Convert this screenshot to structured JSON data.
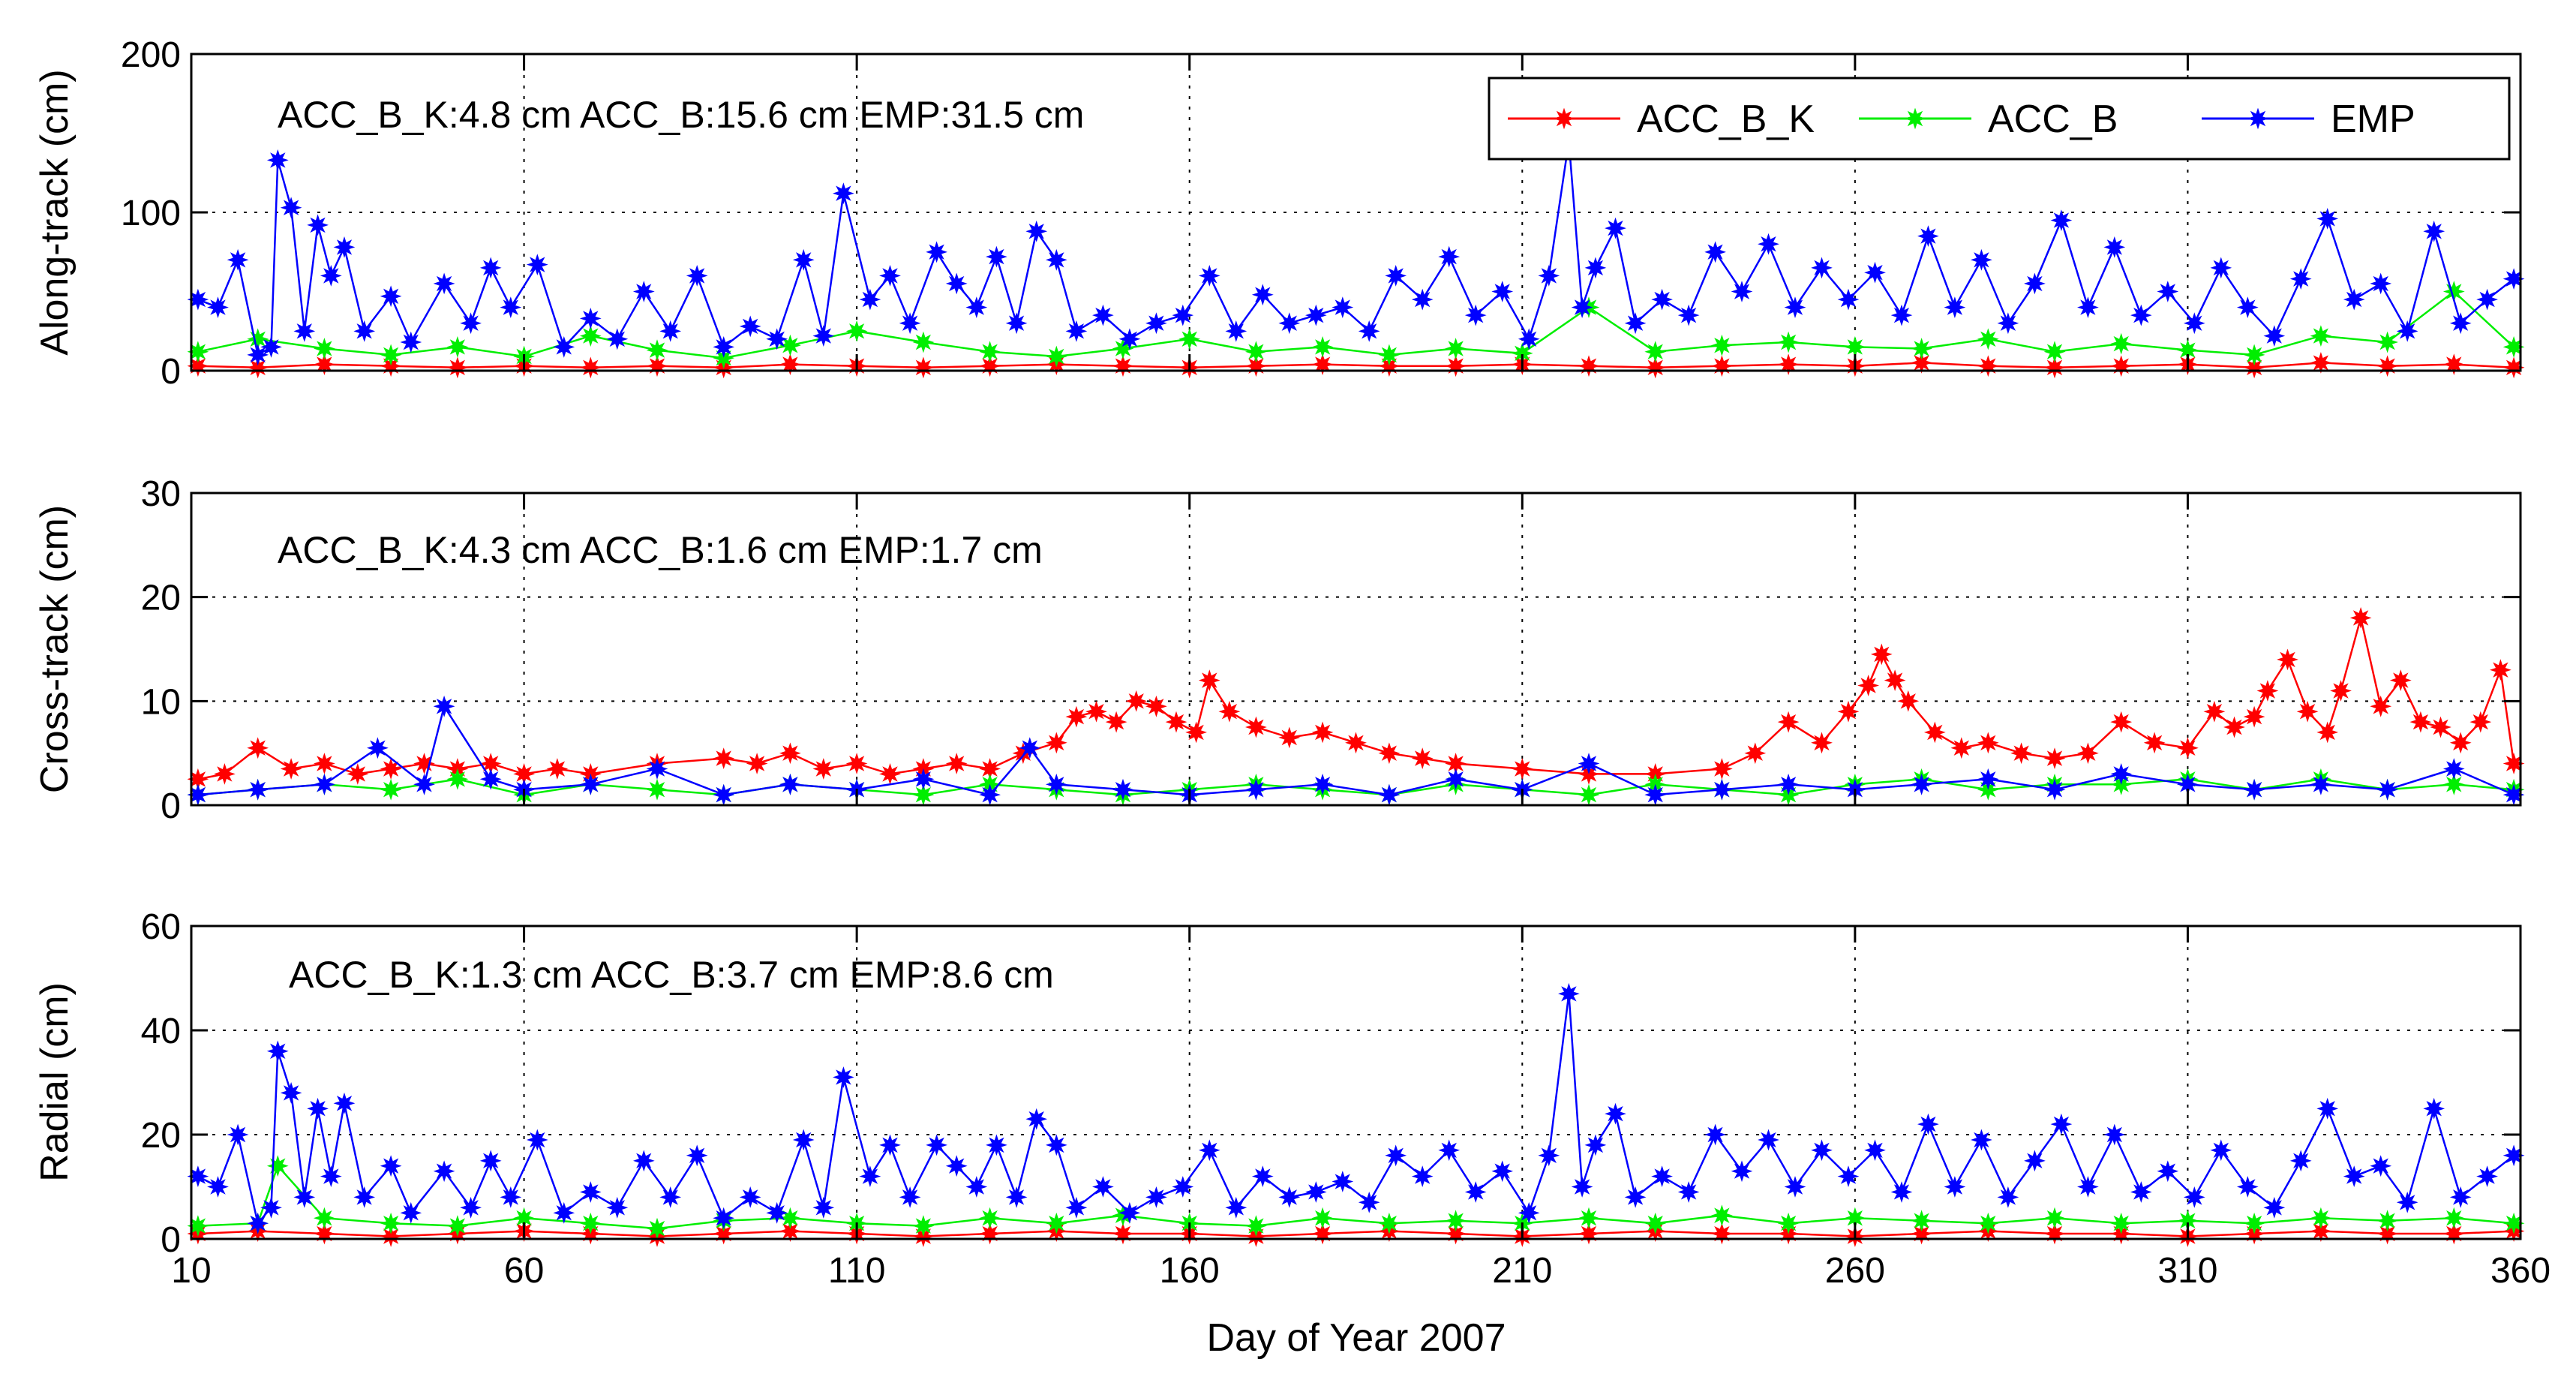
{
  "chart_data": [
    {
      "type": "line",
      "ylabel": "Along-track (cm)",
      "xlabel": "",
      "xlim": [
        10,
        360
      ],
      "ylim": [
        0,
        200
      ],
      "yticks": [
        0,
        100,
        200
      ],
      "xticks": [
        10,
        60,
        110,
        160,
        210,
        260,
        310,
        360
      ],
      "grid": true,
      "annotation": "ACC_B_K:4.8 cm ACC_B:15.6 cm EMP:31.5 cm",
      "legend": {
        "placement": "top-right",
        "entries": [
          "ACC_B_K",
          "ACC_B",
          "EMP"
        ]
      },
      "series": [
        {
          "name": "ACC_B_K",
          "color": "#ff0000",
          "x": [
            11,
            20,
            30,
            40,
            50,
            60,
            70,
            80,
            90,
            100,
            110,
            120,
            130,
            140,
            150,
            160,
            170,
            180,
            190,
            200,
            210,
            220,
            230,
            240,
            250,
            260,
            270,
            280,
            290,
            300,
            310,
            320,
            330,
            340,
            350,
            359
          ],
          "y": [
            3,
            2,
            4,
            3,
            2,
            3,
            2,
            3,
            2,
            4,
            3,
            2,
            3,
            4,
            3,
            2,
            3,
            4,
            3,
            3,
            4,
            3,
            2,
            3,
            4,
            3,
            5,
            3,
            2,
            3,
            4,
            2,
            5,
            3,
            4,
            2
          ]
        },
        {
          "name": "ACC_B",
          "color": "#00ee00",
          "x": [
            11,
            20,
            30,
            40,
            50,
            60,
            70,
            80,
            90,
            100,
            110,
            120,
            130,
            140,
            150,
            160,
            170,
            180,
            190,
            200,
            210,
            220,
            230,
            240,
            250,
            260,
            270,
            280,
            290,
            300,
            310,
            320,
            330,
            340,
            350,
            359
          ],
          "y": [
            12,
            20,
            14,
            10,
            15,
            9,
            22,
            13,
            8,
            16,
            25,
            18,
            12,
            9,
            14,
            20,
            12,
            15,
            10,
            14,
            11,
            40,
            12,
            16,
            18,
            15,
            14,
            20,
            12,
            17,
            13,
            10,
            22,
            18,
            50,
            15
          ]
        },
        {
          "name": "EMP",
          "color": "#0000ff",
          "x": [
            11,
            14,
            17,
            20,
            22,
            23,
            25,
            27,
            29,
            31,
            33,
            36,
            40,
            43,
            48,
            52,
            55,
            58,
            62,
            66,
            70,
            74,
            78,
            82,
            86,
            90,
            94,
            98,
            102,
            105,
            108,
            112,
            115,
            118,
            122,
            125,
            128,
            131,
            134,
            137,
            140,
            143,
            147,
            151,
            155,
            159,
            163,
            167,
            171,
            175,
            179,
            183,
            187,
            191,
            195,
            199,
            203,
            207,
            211,
            214,
            217,
            219,
            221,
            224,
            227,
            231,
            235,
            239,
            243,
            247,
            251,
            255,
            259,
            263,
            267,
            271,
            275,
            279,
            283,
            287,
            291,
            295,
            299,
            303,
            307,
            311,
            315,
            319,
            323,
            327,
            331,
            335,
            339,
            343,
            347,
            351,
            355,
            359
          ],
          "y": [
            45,
            40,
            70,
            10,
            15,
            133,
            103,
            25,
            92,
            60,
            78,
            25,
            47,
            18,
            55,
            30,
            65,
            40,
            67,
            15,
            33,
            20,
            50,
            25,
            60,
            15,
            28,
            20,
            70,
            22,
            112,
            45,
            60,
            30,
            75,
            55,
            40,
            72,
            30,
            88,
            70,
            25,
            35,
            20,
            30,
            35,
            60,
            25,
            48,
            30,
            35,
            40,
            25,
            60,
            45,
            72,
            35,
            50,
            20,
            60,
            145,
            40,
            65,
            90,
            30,
            45,
            35,
            75,
            50,
            80,
            40,
            65,
            45,
            62,
            35,
            85,
            40,
            70,
            30,
            55,
            95,
            40,
            78,
            35,
            50,
            30,
            65,
            40,
            22,
            58,
            96,
            45,
            55,
            25,
            88,
            30,
            45,
            58
          ]
        }
      ]
    },
    {
      "type": "line",
      "ylabel": "Cross-track (cm)",
      "xlabel": "",
      "xlim": [
        10,
        360
      ],
      "ylim": [
        0,
        30
      ],
      "yticks": [
        0,
        10,
        20,
        30
      ],
      "xticks": [
        10,
        60,
        110,
        160,
        210,
        260,
        310,
        360
      ],
      "grid": true,
      "annotation": "ACC_B_K:4.3 cm ACC_B:1.6 cm EMP:1.7 cm",
      "series": [
        {
          "name": "ACC_B_K",
          "color": "#ff0000",
          "x": [
            11,
            15,
            20,
            25,
            30,
            35,
            40,
            45,
            50,
            55,
            60,
            65,
            70,
            80,
            90,
            95,
            100,
            105,
            110,
            115,
            120,
            125,
            130,
            135,
            140,
            143,
            146,
            149,
            152,
            155,
            158,
            161,
            163,
            166,
            170,
            175,
            180,
            185,
            190,
            195,
            200,
            210,
            220,
            230,
            240,
            245,
            250,
            255,
            259,
            262,
            264,
            266,
            268,
            272,
            276,
            280,
            285,
            290,
            295,
            300,
            305,
            310,
            314,
            317,
            320,
            322,
            325,
            328,
            331,
            333,
            336,
            339,
            342,
            345,
            348,
            351,
            354,
            357,
            359
          ],
          "y": [
            2.5,
            3.0,
            5.5,
            3.5,
            4.0,
            3.0,
            3.5,
            4.0,
            3.5,
            4.0,
            3.0,
            3.5,
            3.0,
            4.0,
            4.5,
            4.0,
            5.0,
            3.5,
            4.0,
            3.0,
            3.5,
            4.0,
            3.5,
            5.0,
            6.0,
            8.5,
            9.0,
            8.0,
            10.0,
            9.5,
            8.0,
            7.0,
            12.0,
            9.0,
            7.5,
            6.5,
            7.0,
            6.0,
            5.0,
            4.5,
            4.0,
            3.5,
            3.0,
            3.0,
            3.5,
            5.0,
            8.0,
            6.0,
            9.0,
            11.5,
            14.5,
            12.0,
            10.0,
            7.0,
            5.5,
            6.0,
            5.0,
            4.5,
            5.0,
            8.0,
            6.0,
            5.5,
            9.0,
            7.5,
            8.5,
            11.0,
            14.0,
            9.0,
            7.0,
            11.0,
            18.0,
            9.5,
            12.0,
            8.0,
            7.5,
            6.0,
            8.0,
            13.0,
            4.0
          ]
        },
        {
          "name": "ACC_B",
          "color": "#00ee00",
          "x": [
            11,
            20,
            30,
            40,
            50,
            60,
            70,
            80,
            90,
            100,
            110,
            120,
            130,
            140,
            150,
            160,
            170,
            180,
            190,
            200,
            210,
            220,
            230,
            240,
            250,
            260,
            270,
            280,
            290,
            300,
            310,
            320,
            330,
            340,
            350,
            359
          ],
          "y": [
            1.0,
            1.5,
            2.0,
            1.5,
            2.5,
            1.0,
            2.0,
            1.5,
            1.0,
            2.0,
            1.5,
            1.0,
            2.0,
            1.5,
            1.0,
            1.5,
            2.0,
            1.5,
            1.0,
            2.0,
            1.5,
            1.0,
            2.0,
            1.5,
            1.0,
            2.0,
            2.5,
            1.5,
            2.0,
            2.0,
            2.5,
            1.5,
            2.5,
            1.5,
            2.0,
            1.5
          ]
        },
        {
          "name": "EMP",
          "color": "#0000ff",
          "x": [
            11,
            20,
            30,
            38,
            45,
            48,
            55,
            60,
            70,
            80,
            90,
            100,
            110,
            120,
            130,
            136,
            140,
            150,
            160,
            170,
            180,
            190,
            200,
            210,
            220,
            230,
            240,
            250,
            260,
            270,
            280,
            290,
            300,
            310,
            320,
            330,
            340,
            350,
            359
          ],
          "y": [
            1.0,
            1.5,
            2.0,
            5.5,
            2.0,
            9.5,
            2.5,
            1.5,
            2.0,
            3.5,
            1.0,
            2.0,
            1.5,
            2.5,
            1.0,
            5.5,
            2.0,
            1.5,
            1.0,
            1.5,
            2.0,
            1.0,
            2.5,
            1.5,
            4.0,
            1.0,
            1.5,
            2.0,
            1.5,
            2.0,
            2.5,
            1.5,
            3.0,
            2.0,
            1.5,
            2.0,
            1.5,
            3.5,
            1.0
          ]
        }
      ]
    },
    {
      "type": "line",
      "ylabel": "Radial (cm)",
      "xlabel": "Day of Year 2007",
      "xlim": [
        10,
        360
      ],
      "ylim": [
        0,
        60
      ],
      "yticks": [
        0,
        20,
        40,
        60
      ],
      "xticks": [
        10,
        60,
        110,
        160,
        210,
        260,
        310,
        360
      ],
      "grid": true,
      "annotation": "ACC_B_K:1.3 cm ACC_B:3.7 cm EMP:8.6 cm",
      "series": [
        {
          "name": "ACC_B_K",
          "color": "#ff0000",
          "x": [
            11,
            20,
            30,
            40,
            50,
            60,
            70,
            80,
            90,
            100,
            110,
            120,
            130,
            140,
            150,
            160,
            170,
            180,
            190,
            200,
            210,
            220,
            230,
            240,
            250,
            260,
            270,
            280,
            290,
            300,
            310,
            320,
            330,
            340,
            350,
            359
          ],
          "y": [
            1.0,
            1.5,
            1.0,
            0.5,
            1.0,
            1.5,
            1.0,
            0.5,
            1.0,
            1.5,
            1.0,
            0.5,
            1.0,
            1.5,
            1.0,
            1.0,
            0.5,
            1.0,
            1.5,
            1.0,
            0.5,
            1.0,
            1.5,
            1.0,
            1.0,
            0.5,
            1.0,
            1.5,
            1.0,
            1.0,
            0.5,
            1.0,
            1.5,
            1.0,
            1.0,
            1.5
          ]
        },
        {
          "name": "ACC_B",
          "color": "#00ee00",
          "x": [
            11,
            20,
            23,
            30,
            40,
            50,
            60,
            70,
            80,
            90,
            100,
            110,
            120,
            130,
            140,
            150,
            160,
            170,
            180,
            190,
            200,
            210,
            220,
            230,
            240,
            250,
            260,
            270,
            280,
            290,
            300,
            310,
            320,
            330,
            340,
            350,
            359
          ],
          "y": [
            2.5,
            3.0,
            14.0,
            4.0,
            3.0,
            2.5,
            4.0,
            3.0,
            2.0,
            3.5,
            4.0,
            3.0,
            2.5,
            4.0,
            3.0,
            4.5,
            3.0,
            2.5,
            4.0,
            3.0,
            3.5,
            3.0,
            4.0,
            3.0,
            4.5,
            3.0,
            4.0,
            3.5,
            3.0,
            4.0,
            3.0,
            3.5,
            3.0,
            4.0,
            3.5,
            4.0,
            3.0
          ]
        },
        {
          "name": "EMP",
          "color": "#0000ff",
          "x": [
            11,
            14,
            17,
            20,
            22,
            23,
            25,
            27,
            29,
            31,
            33,
            36,
            40,
            43,
            48,
            52,
            55,
            58,
            62,
            66,
            70,
            74,
            78,
            82,
            86,
            90,
            94,
            98,
            102,
            105,
            108,
            112,
            115,
            118,
            122,
            125,
            128,
            131,
            134,
            137,
            140,
            143,
            147,
            151,
            155,
            159,
            163,
            167,
            171,
            175,
            179,
            183,
            187,
            191,
            195,
            199,
            203,
            207,
            211,
            214,
            217,
            219,
            221,
            224,
            227,
            231,
            235,
            239,
            243,
            247,
            251,
            255,
            259,
            263,
            267,
            271,
            275,
            279,
            283,
            287,
            291,
            295,
            299,
            303,
            307,
            311,
            315,
            319,
            323,
            327,
            331,
            335,
            339,
            343,
            347,
            351,
            355,
            359
          ],
          "y": [
            12,
            10,
            20,
            3,
            6,
            36,
            28,
            8,
            25,
            12,
            26,
            8,
            14,
            5,
            13,
            6,
            15,
            8,
            19,
            5,
            9,
            6,
            15,
            8,
            16,
            4,
            8,
            5,
            19,
            6,
            31,
            12,
            18,
            8,
            18,
            14,
            10,
            18,
            8,
            23,
            18,
            6,
            10,
            5,
            8,
            10,
            17,
            6,
            12,
            8,
            9,
            11,
            7,
            16,
            12,
            17,
            9,
            13,
            5,
            16,
            47,
            10,
            18,
            24,
            8,
            12,
            9,
            20,
            13,
            19,
            10,
            17,
            12,
            17,
            9,
            22,
            10,
            19,
            8,
            15,
            22,
            10,
            20,
            9,
            13,
            8,
            17,
            10,
            6,
            15,
            25,
            12,
            14,
            7,
            25,
            8,
            12,
            16
          ]
        }
      ]
    }
  ]
}
